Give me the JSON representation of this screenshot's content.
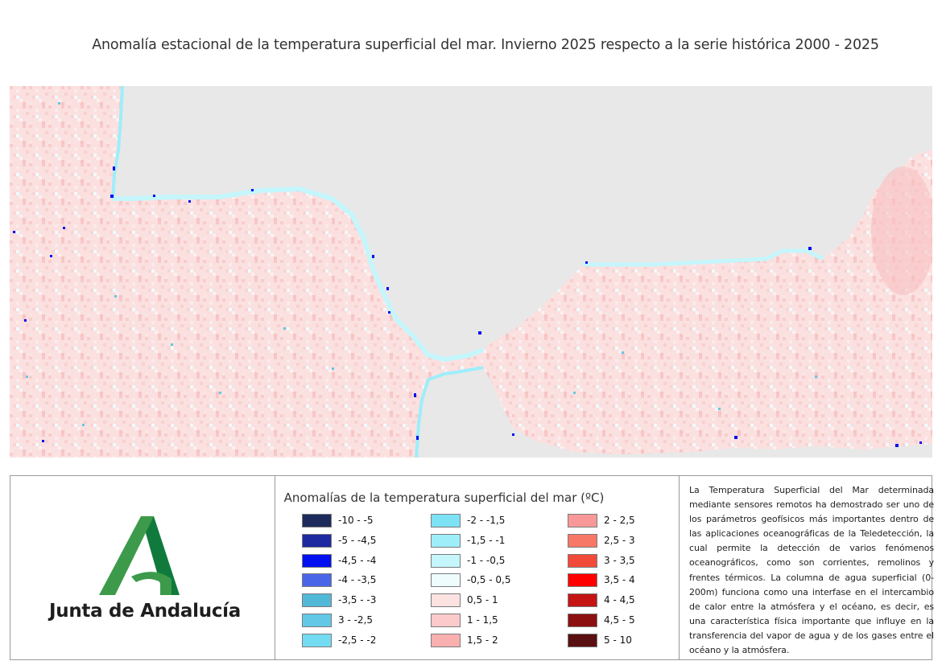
{
  "title": "Anomalía estacional de la temperatura superficial del mar. Invierno 2025 respecto a la serie histórica 2000 - 2025",
  "map": {
    "land_color": "#e8e8e8",
    "sea_base_color": "#fbe2e2"
  },
  "logo": {
    "text": "Junta de Andalucía",
    "green_dark": "#0f7a3c",
    "green_light": "#3c9a4a"
  },
  "legend": {
    "title": "Anomalías de la temperatura superficial del mar (ºC)",
    "columns": [
      [
        {
          "label": "-10 - -5",
          "color": "#1c2b5c"
        },
        {
          "label": "-5 - -4,5",
          "color": "#1e2aa0"
        },
        {
          "label": "-4,5 - -4",
          "color": "#0010f0"
        },
        {
          "label": "-4 - -3,5",
          "color": "#4a66e8"
        },
        {
          "label": "-3,5 - -3",
          "color": "#52b8d8"
        },
        {
          "label": "3 - -2,5",
          "color": "#62c8e6"
        },
        {
          "label": "-2,5 - -2",
          "color": "#74dcf2"
        }
      ],
      [
        {
          "label": "-2 - -1,5",
          "color": "#7de2f4"
        },
        {
          "label": "-1,5 - -1",
          "color": "#9eeefa"
        },
        {
          "label": "-1 - -0,5",
          "color": "#c4f6fc"
        },
        {
          "label": "-0,5 - 0,5",
          "color": "#eefcfe"
        },
        {
          "label": "0,5 - 1",
          "color": "#fde2e2"
        },
        {
          "label": "1 - 1,5",
          "color": "#fccaca"
        },
        {
          "label": "1,5 - 2",
          "color": "#fbb0b0"
        }
      ],
      [
        {
          "label": "2 - 2,5",
          "color": "#f99898"
        },
        {
          "label": "2,5 - 3",
          "color": "#f77866"
        },
        {
          "label": "3 - 3,5",
          "color": "#f24a38"
        },
        {
          "label": "3,5 - 4",
          "color": "#ff0000"
        },
        {
          "label": "4 - 4,5",
          "color": "#c41414"
        },
        {
          "label": "4,5 - 5",
          "color": "#8c1010"
        },
        {
          "label": "5 - 10",
          "color": "#5a1010"
        }
      ]
    ]
  },
  "description": "La Temperatura Superficial del Mar determinada mediante sensores remotos ha demostrado ser uno de los parámetros geofísicos más importantes dentro de las aplicaciones oceanográficas de la Teledetección, la cual permite la detección de varios fenómenos oceanográficos, como son corrientes, remolinos y frentes térmicos. La columna de agua superficial (0-200m) funciona como una interfase en el intercambio de calor entre la atmósfera y el océano, es decir, es una característica física importante que influye en la transferencia del vapor de agua y de los gases entre el océano y la atmósfera."
}
